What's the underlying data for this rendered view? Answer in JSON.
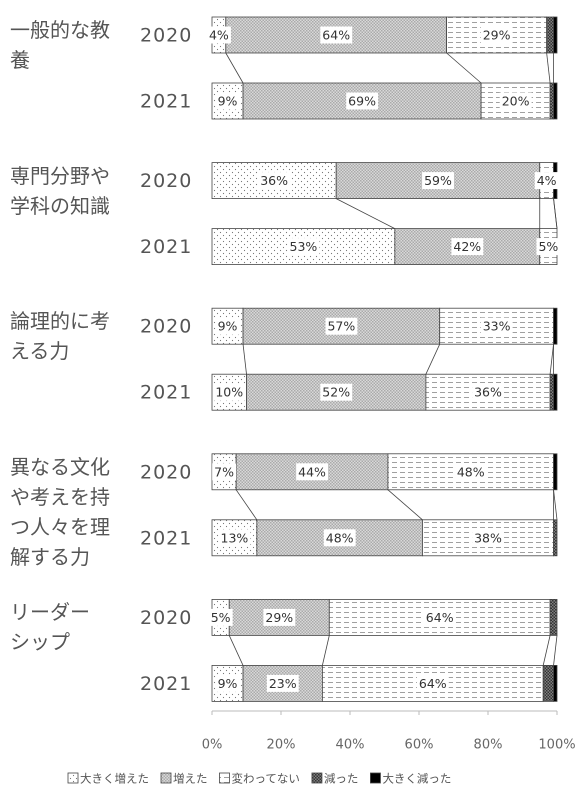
{
  "chart_data": {
    "type": "stacked-bar-horizontal",
    "groups": [
      "一般的な教\n養",
      "専門分野や\n学科の知識",
      "論理的に考\nえる力",
      "異なる文化\nや考えを持\nつ人々を理\n解する力",
      "リーダー\nシップ"
    ],
    "years": [
      "2020",
      "2021"
    ],
    "series": [
      {
        "name": "大きく増えた",
        "color": "#ffffff",
        "values": [
          4,
          9,
          36,
          53,
          9,
          10,
          7,
          13,
          5,
          9
        ],
        "value_labels": [
          "4%",
          "9%",
          "36%",
          "53%",
          "9%",
          "10%",
          "7%",
          "13%",
          "5%",
          "9%"
        ]
      },
      {
        "name": "増えた",
        "color": "#d9d9d9",
        "values": [
          64,
          69,
          59,
          42,
          57,
          52,
          44,
          48,
          29,
          23
        ],
        "value_labels": [
          "64%",
          "69%",
          "59%",
          "42%",
          "57%",
          "52%",
          "44%",
          "48%",
          "29%",
          "23%"
        ]
      },
      {
        "name": "変わってない",
        "color": "#ffffff",
        "values": [
          29,
          20,
          4,
          5,
          33,
          36,
          48,
          38,
          64,
          64
        ],
        "value_labels": [
          "29%",
          "20%",
          "4%",
          "5%",
          "33%",
          "36%",
          "48%",
          "38%",
          "64%",
          "64%"
        ]
      },
      {
        "name": "減った",
        "color": "#7f7f7f",
        "values": [
          2,
          1,
          0,
          0,
          0,
          1,
          0,
          1,
          2,
          3
        ]
      },
      {
        "name": "大きく減った",
        "color": "#000000",
        "values": [
          1,
          1,
          1,
          0,
          1,
          1,
          1,
          0,
          0,
          1
        ]
      }
    ],
    "xlim": [
      0,
      100
    ],
    "xticks": [
      {
        "value": 0,
        "label": "0%"
      },
      {
        "value": 20,
        "label": "20%"
      },
      {
        "value": 40,
        "label": "40%"
      },
      {
        "value": 60,
        "label": "60%"
      },
      {
        "value": 80,
        "label": "80%"
      },
      {
        "value": 100,
        "label": "100%"
      }
    ],
    "legend": "bottom"
  }
}
